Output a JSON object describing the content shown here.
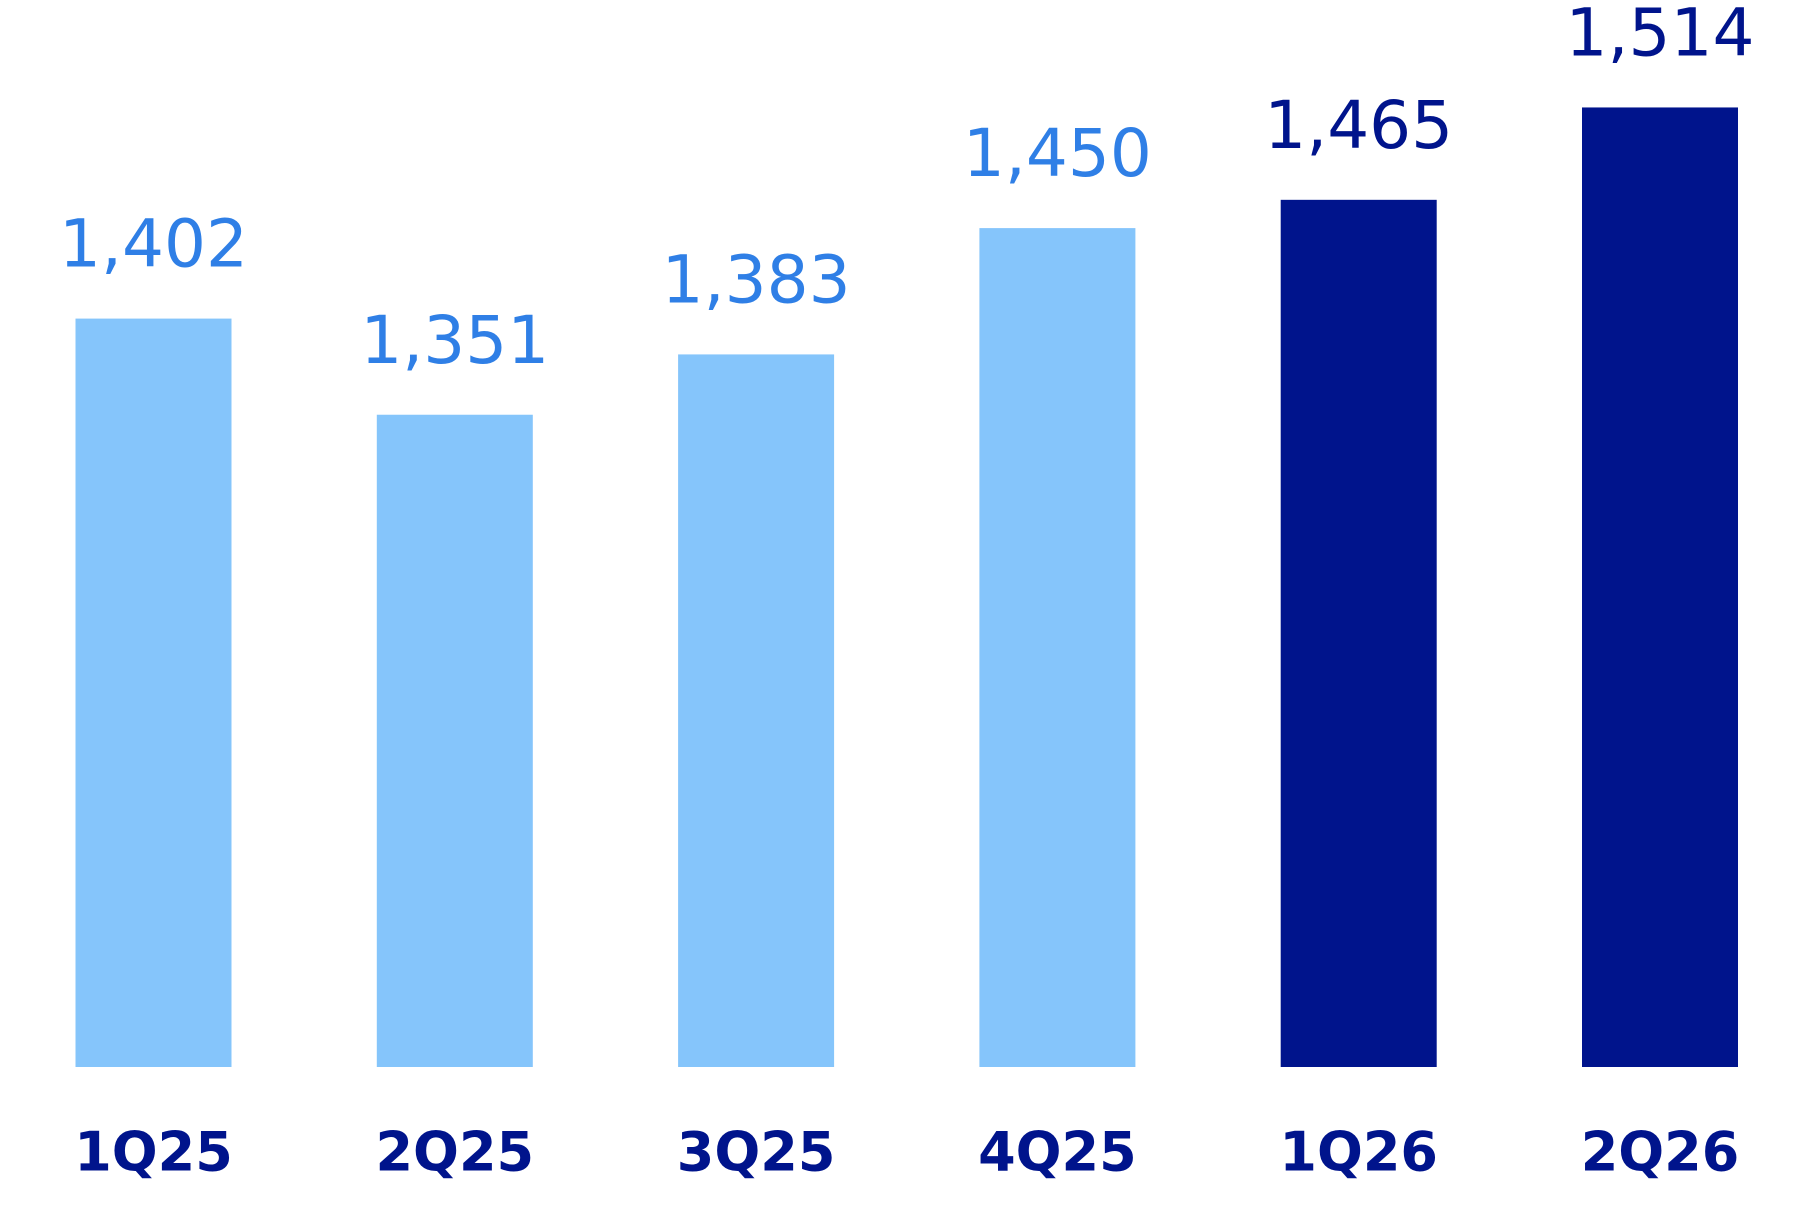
{
  "chart_data": {
    "type": "bar",
    "categories": [
      "1Q25",
      "2Q25",
      "3Q25",
      "4Q25",
      "1Q26",
      "2Q26"
    ],
    "values": [
      1402,
      1351,
      1383,
      1450,
      1465,
      1514
    ],
    "value_labels": [
      "1,402",
      "1,351",
      "1,383",
      "1,450",
      "1,465",
      "1,514"
    ],
    "colors": [
      "#85c5fb",
      "#85c5fb",
      "#85c5fb",
      "#85c5fb",
      "#00148c",
      "#00148c"
    ],
    "label_colors": [
      "#2f7fe6",
      "#2f7fe6",
      "#2f7fe6",
      "#2f7fe6",
      "#00148c",
      "#00148c"
    ],
    "category_color": "#00148c",
    "ylim": [
      1005,
      1571
    ]
  }
}
